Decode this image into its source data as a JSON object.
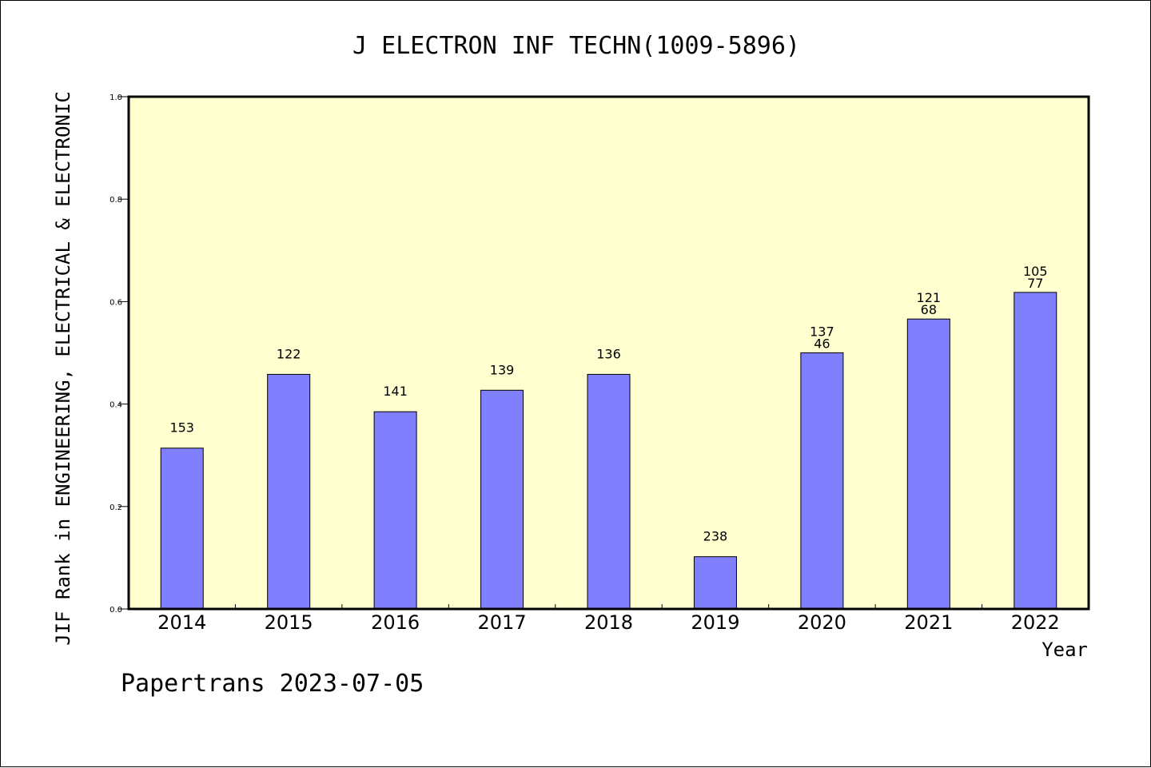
{
  "chart_data": {
    "type": "bar",
    "title": "J ELECTRON INF TECHN(1009-5896)",
    "xlabel": "Year",
    "ylabel": "JIF Rank in ENGINEERING, ELECTRICAL & ELECTRONIC",
    "categories": [
      "2014",
      "2015",
      "2016",
      "2017",
      "2018",
      "2019",
      "2020",
      "2021",
      "2022"
    ],
    "values": [
      0.314,
      0.458,
      0.385,
      0.427,
      0.458,
      0.102,
      0.5,
      0.566,
      0.618
    ],
    "ylim": [
      0,
      1.0
    ],
    "yticks": [
      "0.0",
      "0.2",
      "0.4",
      "0.6",
      "0.8",
      "1.0"
    ],
    "data_labels": [
      [
        "153"
      ],
      [
        "122"
      ],
      [
        "141"
      ],
      [
        "139"
      ],
      [
        "136"
      ],
      [
        "238"
      ],
      [
        "137",
        "46"
      ],
      [
        "121",
        "68"
      ],
      [
        "105",
        "77"
      ]
    ],
    "grid": false,
    "colors": {
      "plot_background": "#ffffd0",
      "bar": "#8080ff",
      "axis": "#000000"
    }
  },
  "footer": {
    "text": "Papertrans 2023-07-05"
  }
}
